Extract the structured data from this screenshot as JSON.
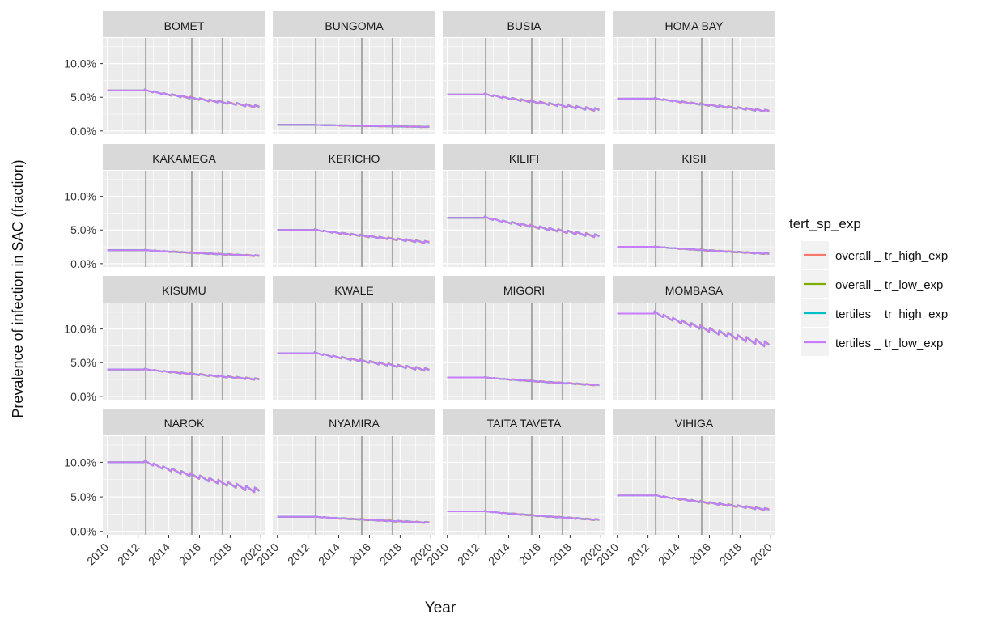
{
  "chart_data": {
    "type": "line",
    "xlabel": "Year",
    "ylabel": "Prevalence of infection in SAC (fraction)",
    "x_ticks": [
      "2010",
      "2012",
      "2014",
      "2016",
      "2018",
      "2020"
    ],
    "y_ticks": [
      "0.0%",
      "5.0%",
      "10.0%"
    ],
    "xlim": [
      2009.7,
      2020.3
    ],
    "ylim": [
      -0.005,
      0.138
    ],
    "grid": true,
    "vertical_reference_lines": [
      2012.5,
      2015.5,
      2017.5
    ],
    "legend": {
      "title": "tert_sp_exp",
      "placement": "right",
      "entries": [
        "overall _ tr_high_exp",
        "overall _ tr_low_exp",
        "tertiles _ tr_high_exp",
        "tertiles _ tr_low_exp"
      ]
    },
    "colors": {
      "overall _ tr_high_exp": "#F8766D",
      "overall _ tr_low_exp": "#7CAE00",
      "tertiles _ tr_high_exp": "#00BFC4",
      "tertiles _ tr_low_exp": "#C77CFF",
      "panel_bg": "#EBEBEB",
      "strip_bg": "#D9D9D9",
      "ref_line": "#A8A8A8"
    },
    "panels": [
      {
        "name": "BOMET",
        "start": 0.06,
        "end": 0.034,
        "sawtooth": 0.6
      },
      {
        "name": "BUNGOMA",
        "start": 0.009,
        "end": 0.006,
        "sawtooth": 0.0
      },
      {
        "name": "BUSIA",
        "start": 0.054,
        "end": 0.029,
        "sawtooth": 0.7
      },
      {
        "name": "HOMA BAY",
        "start": 0.048,
        "end": 0.028,
        "sawtooth": 0.5
      },
      {
        "name": "KAKAMEGA",
        "start": 0.02,
        "end": 0.011,
        "sawtooth": 0.2
      },
      {
        "name": "KERICHO",
        "start": 0.05,
        "end": 0.03,
        "sawtooth": 0.5
      },
      {
        "name": "KILIFI",
        "start": 0.068,
        "end": 0.038,
        "sawtooth": 0.8
      },
      {
        "name": "KISII",
        "start": 0.025,
        "end": 0.014,
        "sawtooth": 0.2
      },
      {
        "name": "KISUMU",
        "start": 0.04,
        "end": 0.024,
        "sawtooth": 0.4
      },
      {
        "name": "KWALE",
        "start": 0.064,
        "end": 0.037,
        "sawtooth": 0.7
      },
      {
        "name": "MIGORI",
        "start": 0.028,
        "end": 0.016,
        "sawtooth": 0.2
      },
      {
        "name": "MOMBASA",
        "start": 0.123,
        "end": 0.072,
        "sawtooth": 1.4
      },
      {
        "name": "NAROK",
        "start": 0.1,
        "end": 0.055,
        "sawtooth": 1.2
      },
      {
        "name": "NYAMIRA",
        "start": 0.021,
        "end": 0.012,
        "sawtooth": 0.2
      },
      {
        "name": "TAITA TAVETA",
        "start": 0.029,
        "end": 0.016,
        "sawtooth": 0.2
      },
      {
        "name": "VIHIGA",
        "start": 0.052,
        "end": 0.03,
        "sawtooth": 0.5
      }
    ]
  }
}
